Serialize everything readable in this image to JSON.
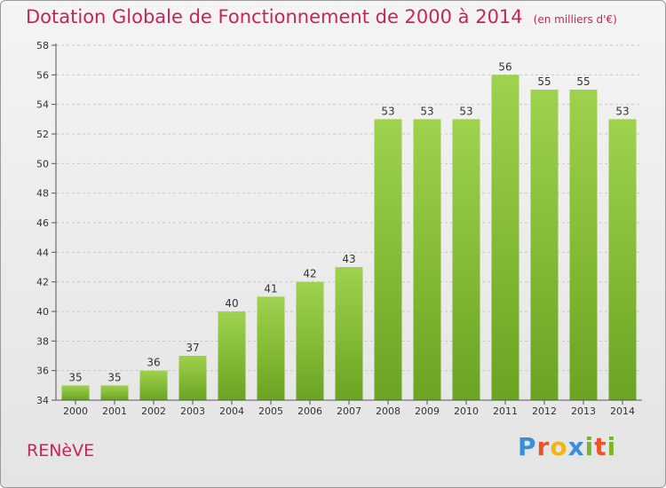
{
  "header": {
    "title": "Dotation Globale de Fonctionnement de 2000 à 2014",
    "subtitle": "(en milliers d'€)"
  },
  "footer": {
    "commune": "RENèVE",
    "logo": "Proxiti",
    "logo_colors": [
      "#3a8fd8",
      "#e8552a",
      "#f0b616",
      "#3a8fd8",
      "#7bb32e",
      "#e8552a",
      "#7bb32e"
    ]
  },
  "chart_data": {
    "type": "bar",
    "title": "Dotation Globale de Fonctionnement de 2000 à 2014",
    "subtitle": "(en milliers d'€)",
    "xlabel": "",
    "ylabel": "",
    "categories": [
      "2000",
      "2001",
      "2002",
      "2003",
      "2004",
      "2005",
      "2006",
      "2007",
      "2008",
      "2009",
      "2010",
      "2011",
      "2012",
      "2013",
      "2014"
    ],
    "values": [
      35,
      35,
      36,
      37,
      40,
      41,
      42,
      43,
      53,
      53,
      53,
      56,
      55,
      55,
      53
    ],
    "ylim": [
      34,
      58
    ],
    "yticks": [
      34,
      36,
      38,
      40,
      42,
      44,
      46,
      48,
      50,
      52,
      54,
      56,
      58
    ],
    "grid": "horizontal-dashed",
    "bar_color": "#7ab42c",
    "bar_color_light": "#9fd24e"
  }
}
